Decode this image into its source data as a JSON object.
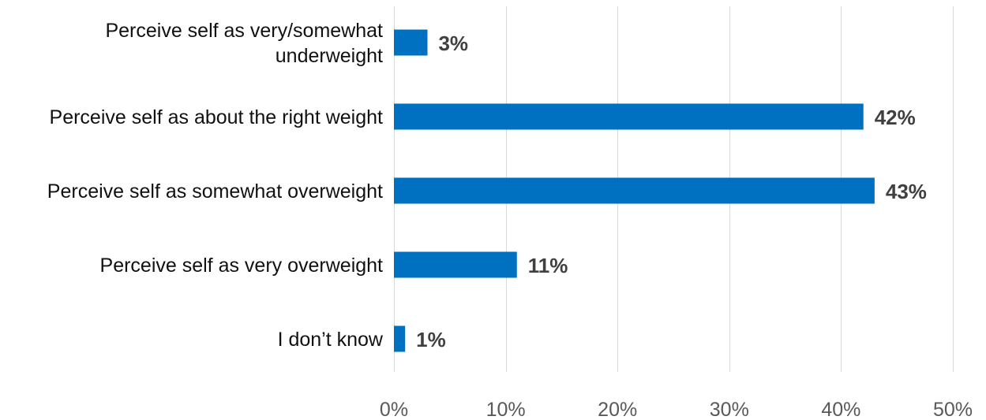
{
  "chart_data": {
    "type": "bar",
    "orientation": "horizontal",
    "categories": [
      [
        "Perceive self as very/somewhat",
        "underweight"
      ],
      [
        "Perceive self as about the right weight"
      ],
      [
        "Perceive self as somewhat overweight"
      ],
      [
        "Perceive self as very overweight"
      ],
      [
        "I don’t know"
      ]
    ],
    "values": [
      3,
      42,
      43,
      11,
      1
    ],
    "data_labels": [
      "3%",
      "42%",
      "43%",
      "11%",
      "1%"
    ],
    "xlim": [
      0,
      50
    ],
    "xticks": [
      0,
      10,
      20,
      30,
      40,
      50
    ],
    "xtick_labels": [
      "0%",
      "10%",
      "20%",
      "30%",
      "40%",
      "50%"
    ],
    "grid": "vertical",
    "legend": "none",
    "title": "",
    "xlabel": "",
    "ylabel": ""
  },
  "colors": {
    "bar": "#0070c0",
    "grid": "#d9d9d9",
    "category_text": "#111111",
    "tick_text": "#595959",
    "data_label_text": "#404040"
  }
}
